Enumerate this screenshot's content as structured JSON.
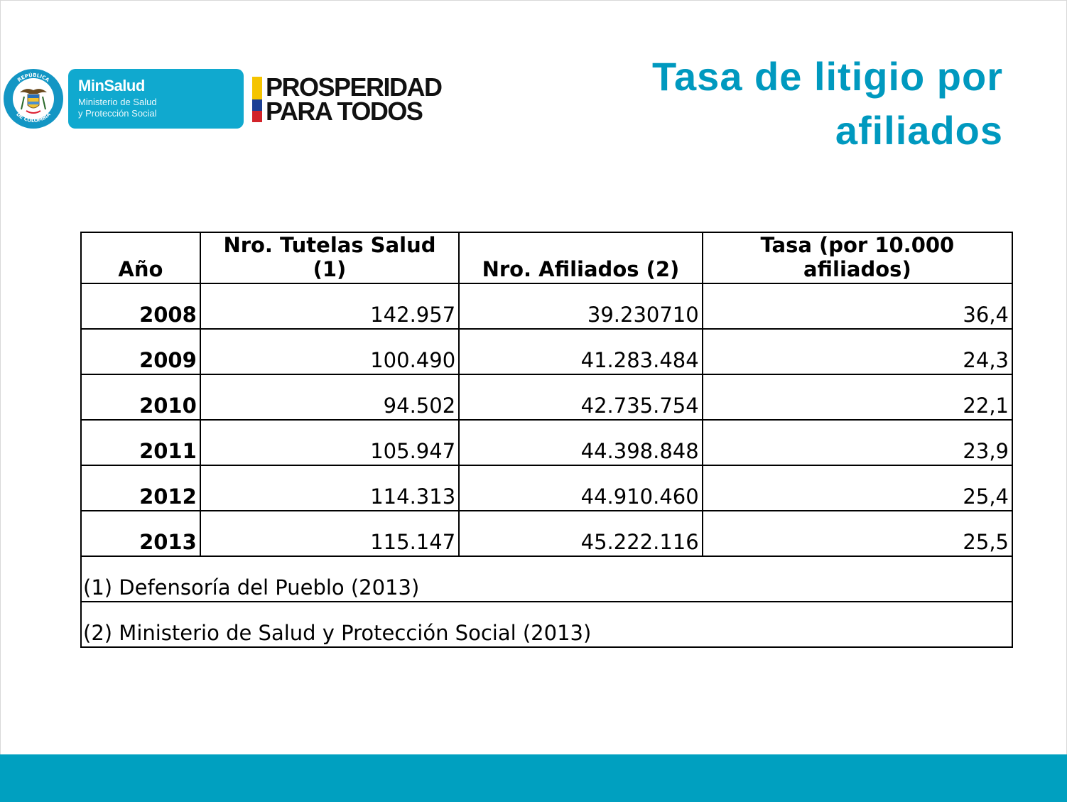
{
  "header": {
    "seal_text_top": "REPÚBLICA",
    "seal_text_bottom": "DE COLOMBIA",
    "minsalud": {
      "name": "MinSalud",
      "subtitle_line1": "Ministerio de Salud",
      "subtitle_line2": "y Protección Social"
    },
    "prosperidad": {
      "line1": "PROSPERIDAD",
      "line2": "PARA TODOS"
    },
    "flag_colors": [
      "#f5c400",
      "#1c3f94",
      "#d2232a"
    ]
  },
  "title": {
    "line1": "Tasa de litigio por",
    "line2": "afiliados"
  },
  "table": {
    "headers": [
      "Año",
      "Nro. Tutelas Salud (1)",
      "Nro. Afiliados (2)",
      "Tasa (por 10.000 afiliados)"
    ],
    "rows": [
      [
        "2008",
        "142.957",
        "39.230710",
        "36,4"
      ],
      [
        "2009",
        "100.490",
        "41.283.484",
        "24,3"
      ],
      [
        "2010",
        "94.502",
        "42.735.754",
        "22,1"
      ],
      [
        "2011",
        "105.947",
        "44.398.848",
        "23,9"
      ],
      [
        "2012",
        "114.313",
        "44.910.460",
        "25,4"
      ],
      [
        "2013",
        "115.147",
        "45.222.116",
        "25,5"
      ]
    ],
    "notes": [
      "(1) Defensoría del Pueblo (2013)",
      "(2) Ministerio de Salud y Protección Social (2013)"
    ]
  },
  "colors": {
    "accent": "#0099bf",
    "footer_band": "#00a0c0"
  }
}
